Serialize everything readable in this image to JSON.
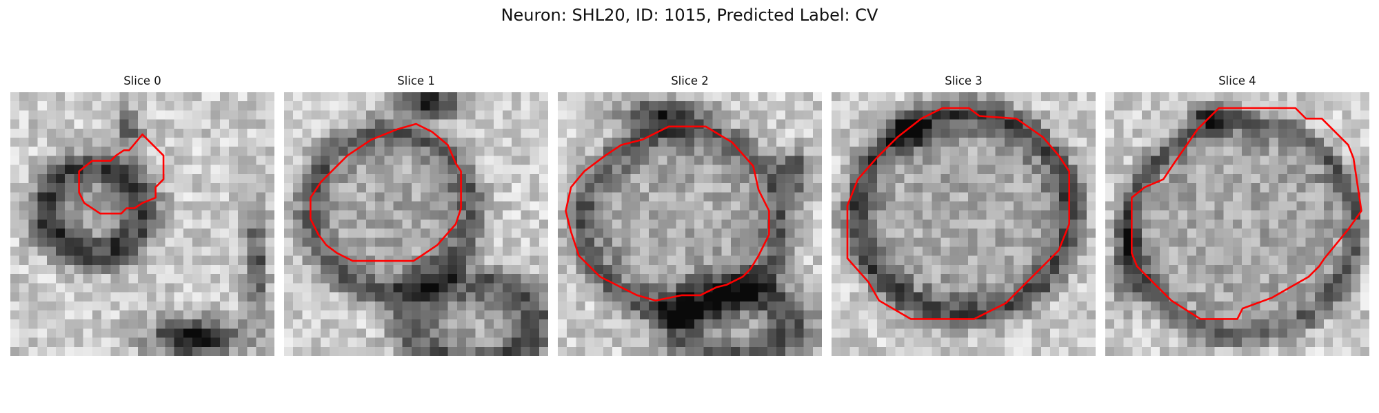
{
  "figure": {
    "title": "Neuron: SHL20, ID: 1015, Predicted Label: CV",
    "colormap": "gray",
    "outline_color": "#ff0000"
  },
  "panels": [
    {
      "title": "Slice 0"
    },
    {
      "title": "Slice 1"
    },
    {
      "title": "Slice 2"
    },
    {
      "title": "Slice 3"
    },
    {
      "title": "Slice 4"
    }
  ]
}
